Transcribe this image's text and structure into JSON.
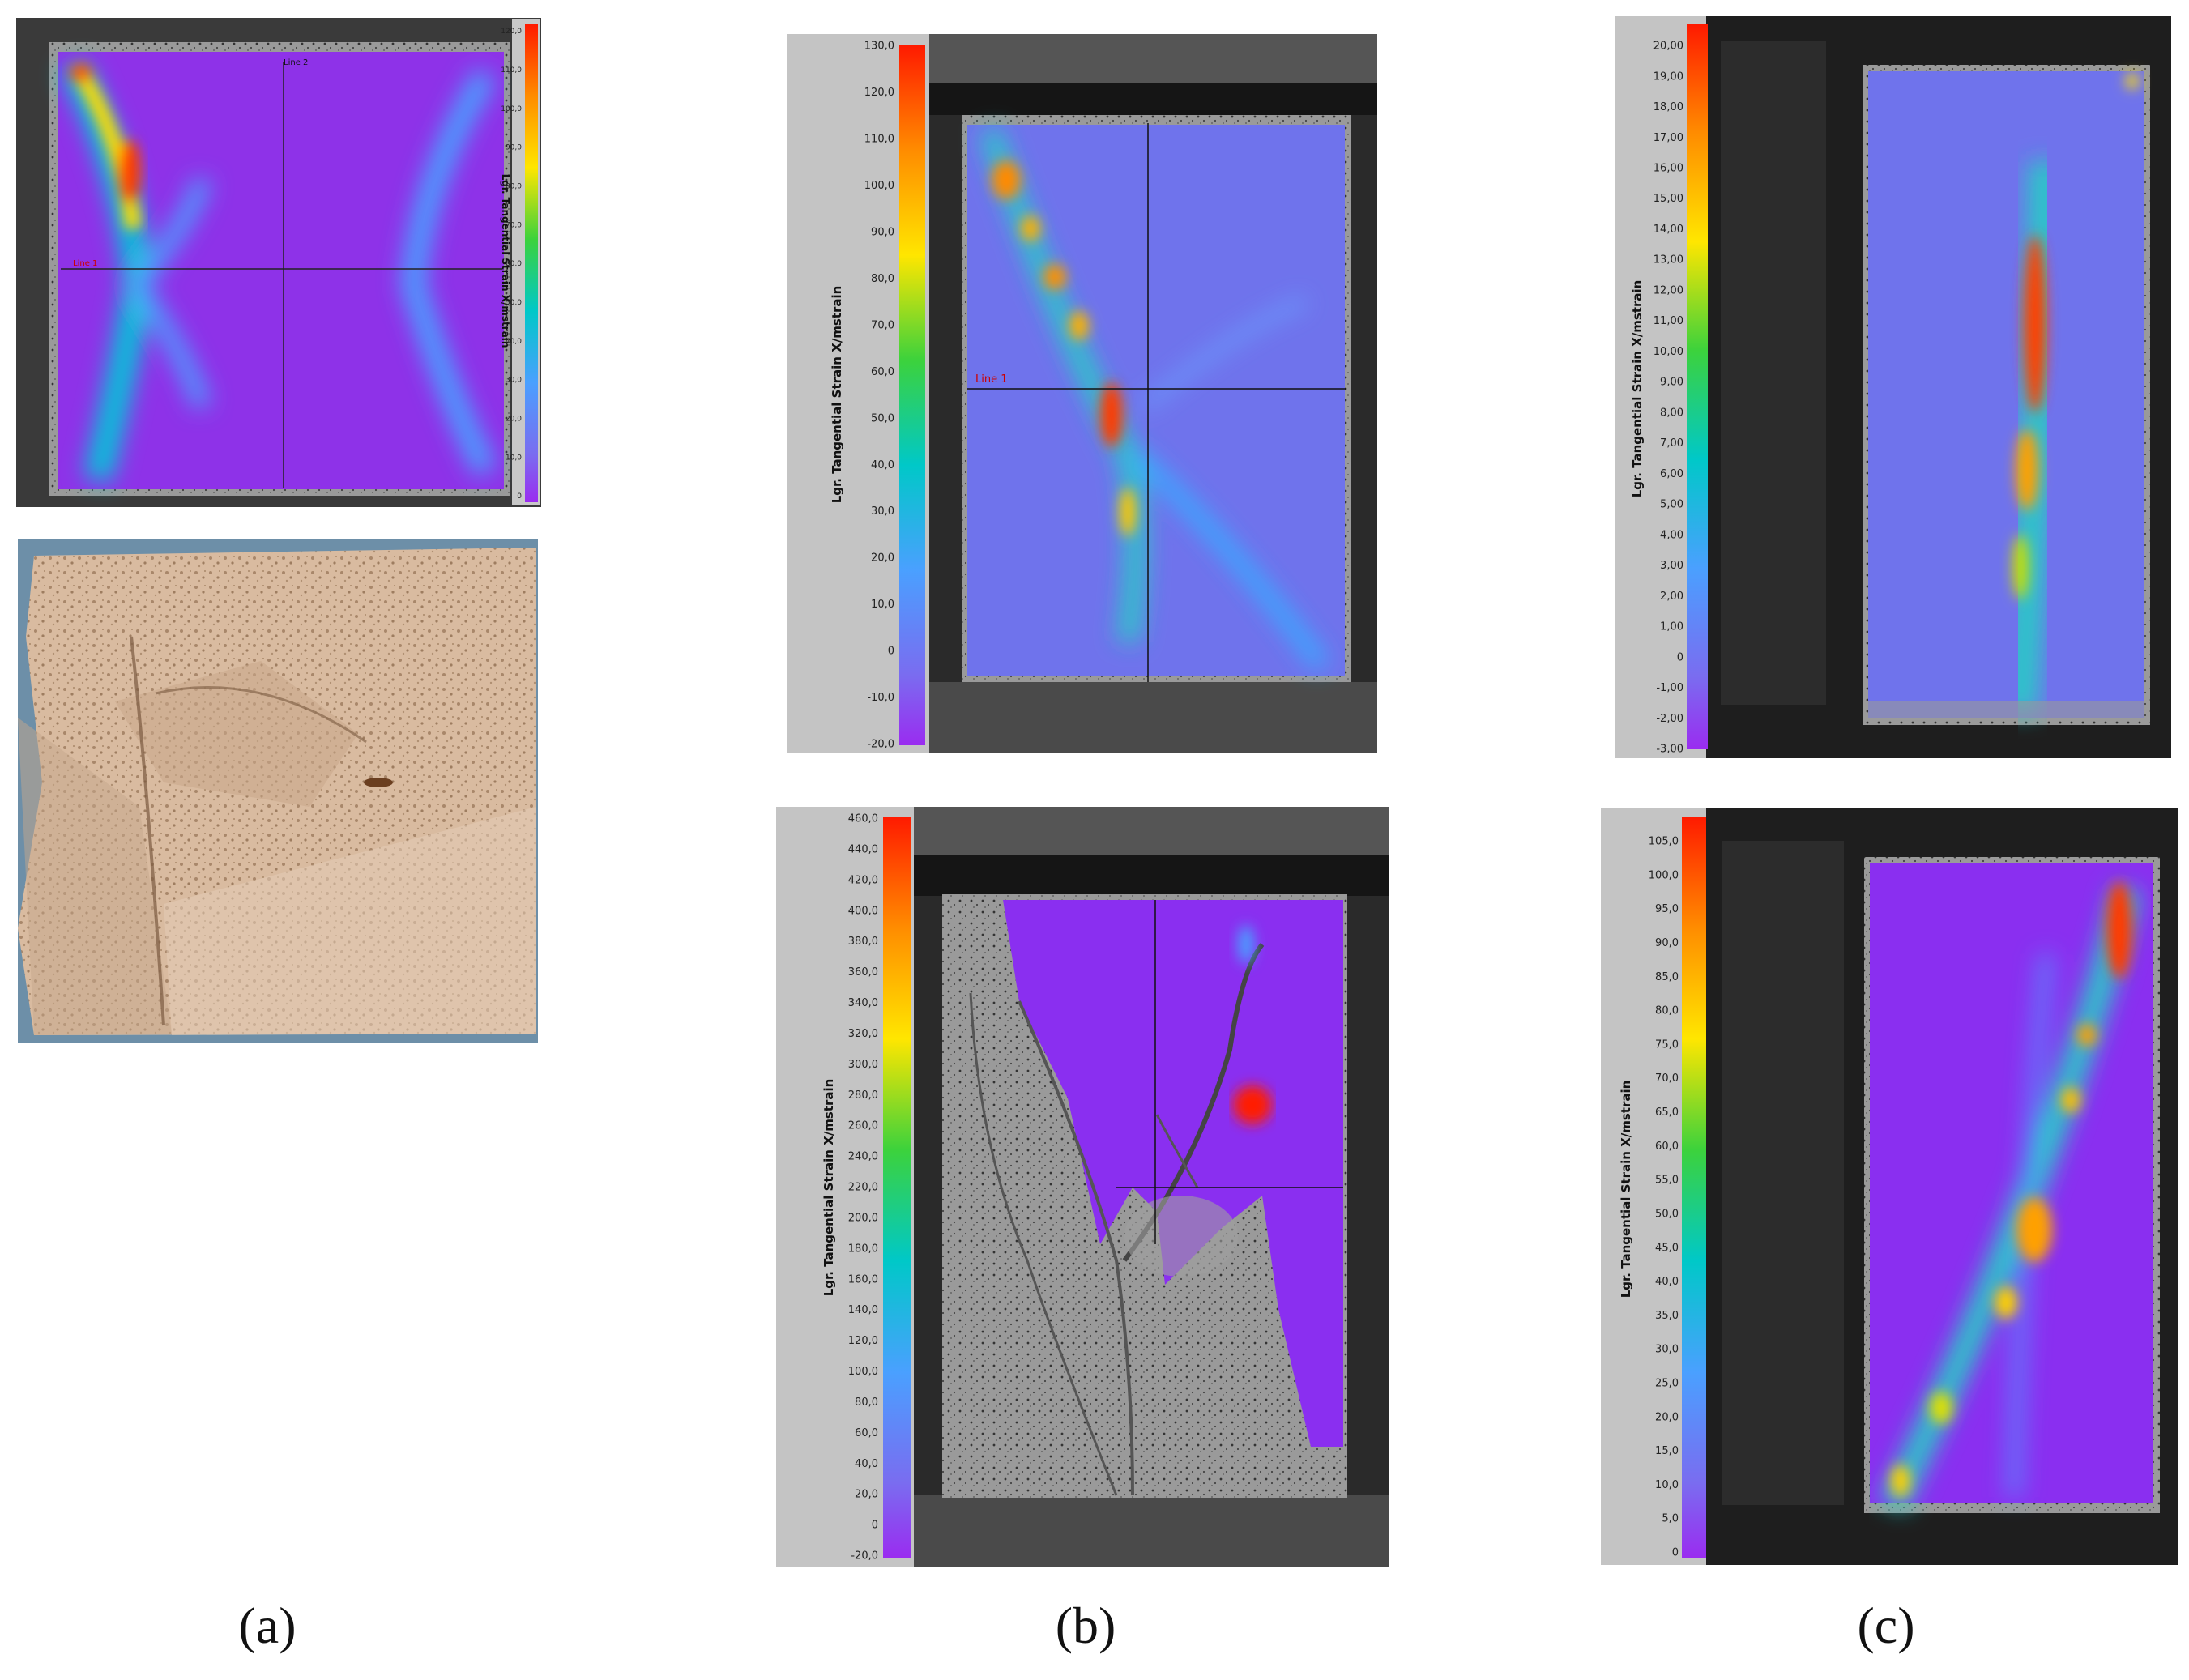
{
  "captions": [
    "(a)",
    "(b)",
    "(c)"
  ],
  "colors": {
    "strain_low": "#8a2be2",
    "strain_mid": "#6a7be8",
    "strain_high": "#ff2a00",
    "panel_bg": "#bfbfbf"
  },
  "panels": {
    "a_top": {
      "axis_label": "Lgr. Tangential Strain X/mstrain",
      "ticks": [
        "120,0",
        "110,0",
        "100,0",
        "90,0",
        "80,0",
        "70,0",
        "60,0",
        "50,0",
        "40,0",
        "30,0",
        "20,0",
        "10,0",
        "0"
      ],
      "line1": "Line 1",
      "line2": "Line 2"
    },
    "b_top": {
      "axis_label": "Lgr. Tangential Strain X/mstrain",
      "ticks": [
        "130,0",
        "120,0",
        "110,0",
        "100,0",
        "90,0",
        "80,0",
        "70,0",
        "60,0",
        "50,0",
        "40,0",
        "30,0",
        "20,0",
        "10,0",
        "0",
        "-10,0",
        "-20,0"
      ],
      "line1": "Line 1"
    },
    "b_bottom": {
      "axis_label": "Lgr. Tangential Strain X/mstrain",
      "ticks": [
        "460,0",
        "440,0",
        "420,0",
        "400,0",
        "380,0",
        "360,0",
        "340,0",
        "320,0",
        "300,0",
        "280,0",
        "260,0",
        "240,0",
        "220,0",
        "200,0",
        "180,0",
        "160,0",
        "140,0",
        "120,0",
        "100,0",
        "80,0",
        "60,0",
        "40,0",
        "20,0",
        "0",
        "-20,0"
      ]
    },
    "c_top": {
      "axis_label": "Lgr. Tangential Strain X/mstrain",
      "ticks": [
        "20,00",
        "19,00",
        "18,00",
        "17,00",
        "16,00",
        "15,00",
        "14,00",
        "13,00",
        "12,00",
        "11,00",
        "10,00",
        "9,00",
        "8,00",
        "7,00",
        "6,00",
        "5,00",
        "4,00",
        "3,00",
        "2,00",
        "1,00",
        "0",
        "-1,00",
        "-2,00",
        "-3,00"
      ]
    },
    "c_bottom": {
      "axis_label": "Lgr. Tangential Strain X/mstrain",
      "ticks": [
        "105,0",
        "100,0",
        "95,0",
        "90,0",
        "85,0",
        "80,0",
        "75,0",
        "70,0",
        "65,0",
        "60,0",
        "55,0",
        "50,0",
        "45,0",
        "40,0",
        "35,0",
        "30,0",
        "25,0",
        "20,0",
        "15,0",
        "10,0",
        "5,0",
        "0"
      ]
    }
  }
}
